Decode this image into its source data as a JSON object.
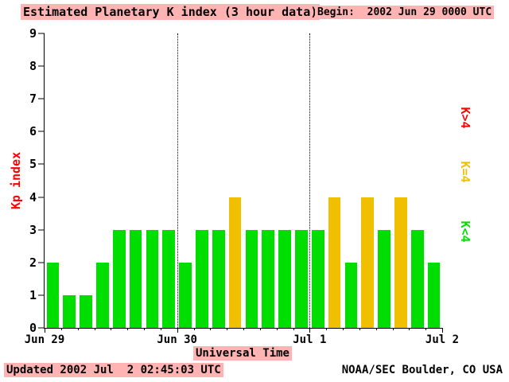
{
  "title": "Estimated Planetary K index (3 hour data)",
  "begin": {
    "label": "Begin:",
    "value": "2002 Jun 29 0000 UTC"
  },
  "footer": {
    "updated": "Updated 2002 Jul  2 02:45:03 UTC",
    "source": "NOAA/SEC Boulder, CO USA"
  },
  "colors": {
    "highlight_pink": "#ffb3b3",
    "green": "#00dd00",
    "yellow": "#f0c000",
    "red": "#ff0000"
  },
  "chart_data": {
    "type": "bar",
    "title": "Estimated Planetary K index (3 hour data)",
    "xlabel": "Universal Time",
    "ylabel": "Kp index",
    "ylim": [
      0,
      9
    ],
    "y_ticks": [
      0,
      1,
      2,
      3,
      4,
      5,
      6,
      7,
      8,
      9
    ],
    "x_ticks": [
      "Jun 29",
      "Jun 30",
      "Jul 1",
      "Jul 2"
    ],
    "bar_interval_hours": 3,
    "grid": "dotted vertical lines at day boundaries",
    "values": [
      2,
      1,
      1,
      2,
      3,
      3,
      3,
      3,
      2,
      3,
      3,
      4,
      3,
      3,
      3,
      3,
      3,
      4,
      2,
      4,
      3,
      4,
      3,
      2
    ],
    "color_rule": {
      "lt4": "#00dd00",
      "eq4": "#f0c000",
      "gt4": "#ff0000"
    },
    "legend": [
      {
        "label": "K>4",
        "color": "#ff0000"
      },
      {
        "label": "K=4",
        "color": "#f0c000"
      },
      {
        "label": "K<4",
        "color": "#00dd00"
      }
    ],
    "legend_position": "right, rotated 90deg"
  }
}
